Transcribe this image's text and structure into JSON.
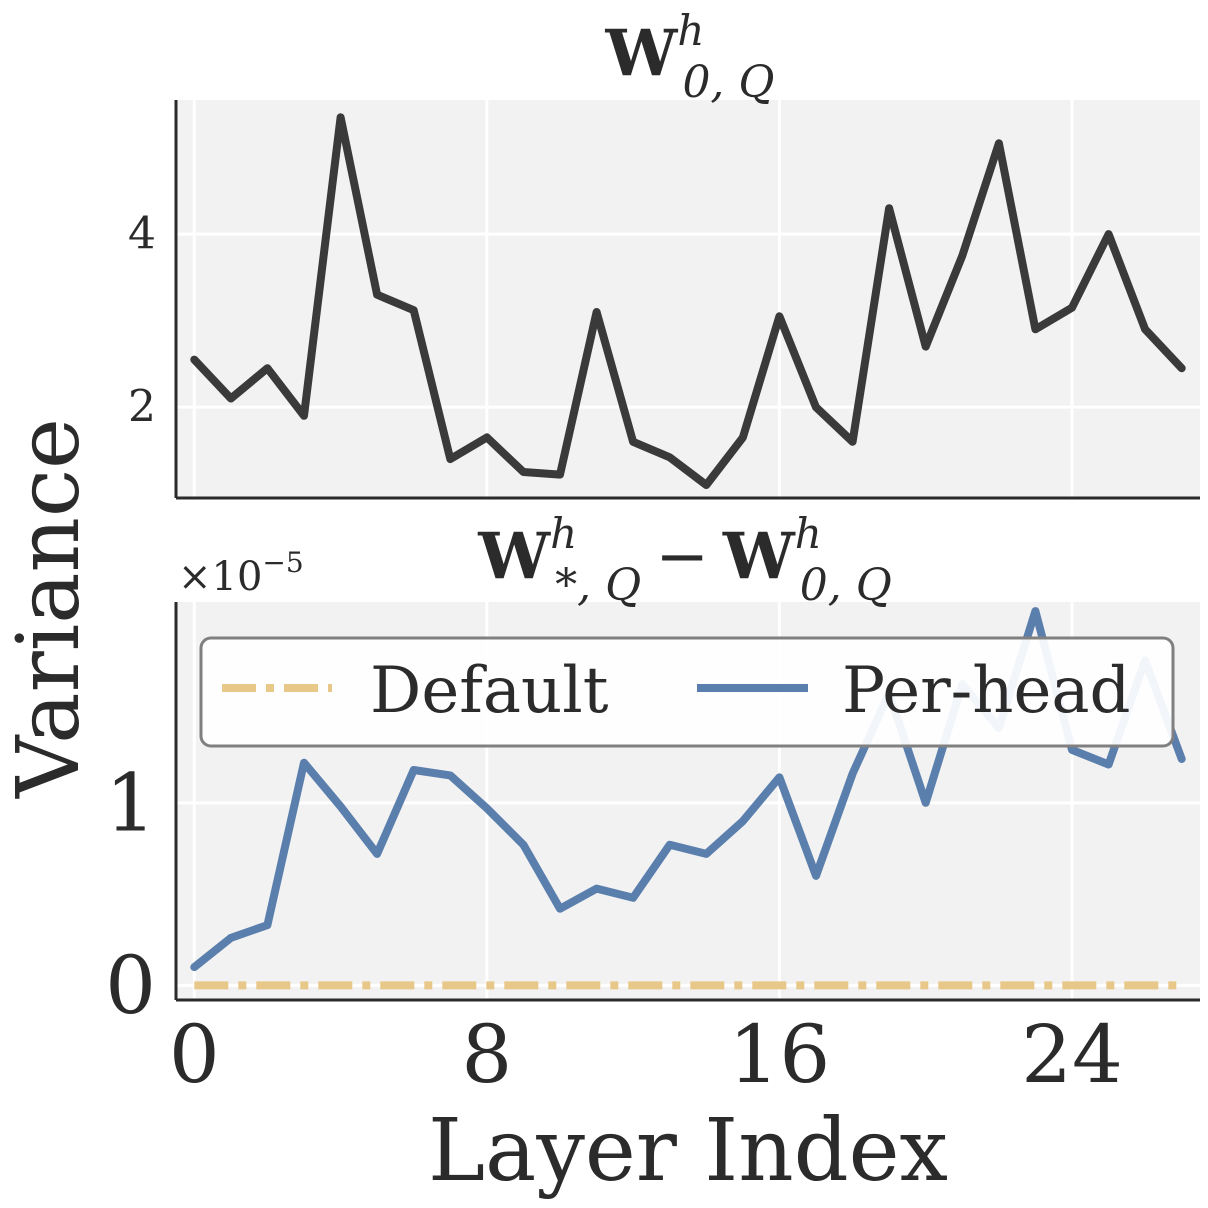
{
  "chart_data": [
    {
      "type": "line",
      "title": {
        "base": "W",
        "sup": "h",
        "sub": "0, Q"
      },
      "x": [
        0,
        1,
        2,
        3,
        4,
        5,
        6,
        7,
        8,
        9,
        10,
        11,
        12,
        13,
        14,
        15,
        16,
        17,
        18,
        19,
        20,
        21,
        22,
        23,
        24,
        25,
        26,
        27
      ],
      "series": [
        {
          "name": "",
          "color": "#3a3a3a",
          "values": [
            2.55,
            2.1,
            2.45,
            1.9,
            5.35,
            3.3,
            3.12,
            1.4,
            1.65,
            1.25,
            1.22,
            3.1,
            1.6,
            1.42,
            1.1,
            1.65,
            3.05,
            2.0,
            1.6,
            4.3,
            2.7,
            3.75,
            5.05,
            2.9,
            3.15,
            4.0,
            2.9,
            2.45
          ]
        }
      ],
      "xlim": [
        -0.5,
        27.5
      ],
      "ylim": [
        0.95,
        5.55
      ],
      "yticks": [
        2,
        4
      ],
      "xticks": [
        0,
        8,
        16,
        24
      ],
      "grid": true
    },
    {
      "type": "line",
      "title": {
        "lhs_base": "W",
        "lhs_sup": "h",
        "lhs_sub": "*, Q",
        "op": "−",
        "rhs_base": "W",
        "rhs_sup": "h",
        "rhs_sub": "0, Q"
      },
      "multiplier_text": "×10",
      "multiplier_exp": "−5",
      "x": [
        0,
        1,
        2,
        3,
        4,
        5,
        6,
        7,
        8,
        9,
        10,
        11,
        12,
        13,
        14,
        15,
        16,
        17,
        18,
        19,
        20,
        21,
        22,
        23,
        24,
        25,
        26,
        27
      ],
      "series": [
        {
          "name": "Default",
          "color": "#e8c888",
          "style": "dashdot",
          "values": [
            0,
            0,
            0,
            0,
            0,
            0,
            0,
            0,
            0,
            0,
            0,
            0,
            0,
            0,
            0,
            0,
            0,
            0,
            0,
            0,
            0,
            0,
            0,
            0,
            0,
            0,
            0,
            0
          ]
        },
        {
          "name": "Per-head",
          "color": "#5b7fad",
          "style": "solid",
          "values": [
            0.1,
            0.26,
            0.33,
            1.22,
            0.98,
            0.72,
            1.18,
            1.15,
            0.97,
            0.77,
            0.42,
            0.53,
            0.48,
            0.77,
            0.72,
            0.9,
            1.14,
            0.6,
            1.16,
            1.6,
            1.0,
            1.65,
            1.41,
            2.05,
            1.29,
            1.21,
            1.78,
            1.24
          ]
        }
      ],
      "xlim": [
        -0.5,
        27.5
      ],
      "ylim": [
        -0.08,
        2.1
      ],
      "yticks": [
        0,
        1
      ],
      "xticks": [
        0,
        8,
        16,
        24
      ],
      "grid": true,
      "legend_placement": "upper-center"
    }
  ],
  "xlabel": "Layer Index",
  "ylabel": "Variance"
}
